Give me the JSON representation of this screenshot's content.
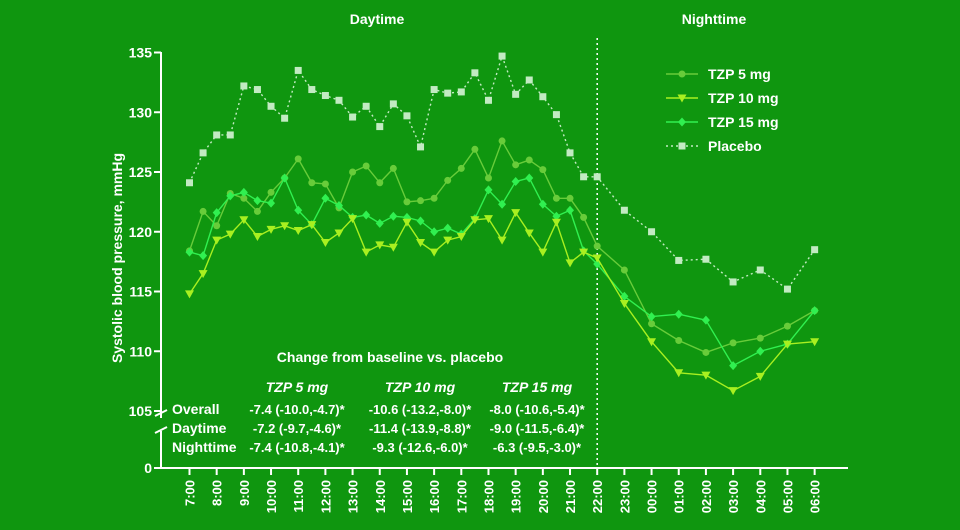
{
  "chart_data": {
    "type": "line",
    "title": "",
    "ylabel": "Systolic blood pressure, mmHg",
    "xlabel": "",
    "ylim": [
      105,
      135
    ],
    "yticks": [
      "105",
      "110",
      "115",
      "120",
      "125",
      "130",
      "135"
    ],
    "y_break_label": "0",
    "x": [
      "7:00",
      "8:00",
      "9:00",
      "10:00",
      "11:00",
      "12:00",
      "13:00",
      "14:00",
      "15:00",
      "16:00",
      "17:00",
      "18:00",
      "19:00",
      "20:00",
      "21:00",
      "22:00",
      "23:00",
      "00:00",
      "01:00",
      "02:00",
      "03:00",
      "04:00",
      "05:00",
      "06:00"
    ],
    "section_labels": {
      "day": "Daytime",
      "night": "Nighttime"
    },
    "night_start_index": 15,
    "legend_position": "top-right",
    "series": [
      {
        "name": "TZP 5 mg",
        "marker": "circle",
        "color": "#68cc3a",
        "line_style": "solid",
        "x": [
          0,
          0.5,
          1,
          1.5,
          2,
          2.5,
          3,
          3.5,
          4,
          4.5,
          5,
          5.5,
          6,
          6.5,
          7,
          7.5,
          8,
          8.5,
          9,
          9.5,
          10,
          10.5,
          11,
          11.5,
          12,
          12.5,
          13,
          13.5,
          14,
          14.5,
          15,
          16,
          17,
          18,
          19,
          20,
          21,
          22,
          23
        ],
        "values": [
          118.4,
          121.7,
          120.5,
          123.2,
          122.8,
          121.7,
          123.3,
          124.5,
          126.1,
          124.1,
          124.0,
          122.0,
          125.0,
          125.5,
          124.1,
          125.3,
          122.5,
          122.6,
          122.8,
          124.3,
          125.3,
          126.9,
          124.5,
          127.6,
          125.6,
          126.0,
          125.2,
          122.8,
          122.8,
          121.2,
          118.8,
          116.8,
          112.3,
          110.9,
          109.9,
          110.7,
          111.1,
          112.1,
          113.4
        ]
      },
      {
        "name": "TZP 10 mg",
        "marker": "triangle-down",
        "color": "#a8f020",
        "line_style": "solid",
        "x": [
          0,
          0.5,
          1,
          1.5,
          2,
          2.5,
          3,
          3.5,
          4,
          4.5,
          5,
          5.5,
          6,
          6.5,
          7,
          7.5,
          8,
          8.5,
          9,
          9.5,
          10,
          10.5,
          11,
          11.5,
          12,
          12.5,
          13,
          13.5,
          14,
          14.5,
          15,
          16,
          17,
          18,
          19,
          20,
          21,
          22,
          23
        ],
        "values": [
          114.8,
          116.5,
          119.3,
          119.8,
          121.0,
          119.6,
          120.2,
          120.5,
          120.1,
          120.6,
          119.1,
          119.9,
          121.1,
          118.3,
          118.9,
          118.7,
          120.8,
          119.1,
          118.3,
          119.3,
          119.6,
          121.0,
          121.1,
          119.3,
          121.6,
          119.9,
          118.3,
          120.8,
          117.4,
          118.3,
          117.8,
          114.0,
          110.8,
          108.2,
          108.0,
          106.7,
          107.9,
          110.6,
          110.8
        ]
      },
      {
        "name": "TZP 15 mg",
        "marker": "diamond",
        "color": "#30f050",
        "line_style": "solid",
        "x": [
          0,
          0.5,
          1,
          1.5,
          2,
          2.5,
          3,
          3.5,
          4,
          4.5,
          5,
          5.5,
          6,
          6.5,
          7,
          7.5,
          8,
          8.5,
          9,
          9.5,
          10,
          10.5,
          11,
          11.5,
          12,
          12.5,
          13,
          13.5,
          14,
          14.5,
          15,
          16,
          17,
          18,
          19,
          20,
          21,
          22,
          23
        ],
        "values": [
          118.3,
          118.0,
          121.6,
          123.0,
          123.3,
          122.6,
          122.4,
          124.5,
          121.8,
          120.6,
          122.8,
          122.2,
          121.2,
          121.4,
          120.7,
          121.3,
          121.2,
          120.9,
          120.0,
          120.3,
          119.8,
          121.1,
          123.5,
          122.3,
          124.2,
          124.5,
          122.3,
          121.3,
          121.8,
          118.4,
          117.3,
          114.6,
          112.9,
          113.1,
          112.6,
          108.8,
          110.0,
          110.6,
          113.4
        ]
      },
      {
        "name": "Placebo",
        "marker": "square",
        "color": "#c2ebc2",
        "line_style": "dotted",
        "x": [
          0,
          0.5,
          1,
          1.5,
          2,
          2.5,
          3,
          3.5,
          4,
          4.5,
          5,
          5.5,
          6,
          6.5,
          7,
          7.5,
          8,
          8.5,
          9,
          9.5,
          10,
          10.5,
          11,
          11.5,
          12,
          12.5,
          13,
          13.5,
          14,
          14.5,
          15,
          16,
          17,
          18,
          19,
          20,
          21,
          22,
          23
        ],
        "values": [
          124.1,
          126.6,
          128.1,
          128.1,
          132.2,
          131.9,
          130.5,
          129.5,
          133.5,
          131.9,
          131.4,
          131.0,
          129.6,
          130.5,
          128.8,
          130.7,
          129.7,
          127.1,
          131.9,
          131.6,
          131.7,
          133.3,
          131.0,
          134.7,
          131.5,
          132.7,
          131.3,
          129.8,
          126.6,
          124.6,
          124.6,
          121.8,
          120.0,
          117.6,
          117.7,
          115.8,
          116.8,
          115.2,
          118.5
        ]
      }
    ],
    "inset_table": {
      "title": "Change from baseline vs. placebo",
      "columns": [
        "TZP 5 mg",
        "TZP 10 mg",
        "TZP 15 mg"
      ],
      "rows": [
        {
          "label": "Overall",
          "values": [
            "-7.4 (-10.0,-4.7)*",
            "-10.6 (-13.2,-8.0)*",
            "-8.0 (-10.6,-5.4)*"
          ]
        },
        {
          "label": "Daytime",
          "values": [
            "-7.2 (-9.7,-4.6)*",
            "-11.4 (-13.9,-8.8)*",
            "-9.0 (-11.5,-6.4)*"
          ]
        },
        {
          "label": "Nighttime",
          "values": [
            "-7.4 (-10.8,-4.1)*",
            "-9.3 (-12.6,-6.0)*",
            "-6.3 (-9.5,-3.0)*"
          ]
        }
      ]
    }
  }
}
